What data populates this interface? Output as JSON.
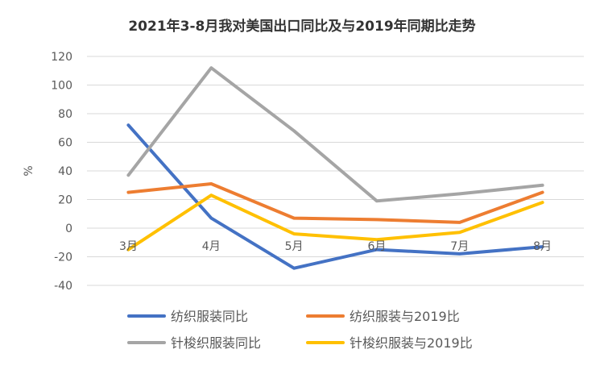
{
  "chart_data": {
    "type": "line",
    "title": "2021年3-8月我对美国出口同比及与2019年同期比走势",
    "xlabel": "",
    "ylabel": "%",
    "categories": [
      "3月",
      "4月",
      "5月",
      "6月",
      "7月",
      "8月"
    ],
    "ylim": [
      -40,
      120
    ],
    "yticks": [
      "120",
      "100",
      "80",
      "60",
      "40",
      "20",
      "0",
      "-20",
      "-40"
    ],
    "grid": true,
    "legend_position": "bottom",
    "series": [
      {
        "name": "纺织服装同比",
        "color": "#4472C4",
        "values": [
          72,
          7,
          -28,
          -15,
          -18,
          -13
        ]
      },
      {
        "name": "纺织服装与2019比",
        "color": "#ED7D31",
        "values": [
          25,
          31,
          7,
          6,
          4,
          25
        ]
      },
      {
        "name": "针梭织服装同比",
        "color": "#A5A5A5",
        "values": [
          37,
          112,
          68,
          19,
          24,
          30
        ]
      },
      {
        "name": "针梭织服装与2019比",
        "color": "#FFC000",
        "values": [
          -15,
          23,
          -4,
          -8,
          -3,
          18
        ]
      }
    ]
  }
}
